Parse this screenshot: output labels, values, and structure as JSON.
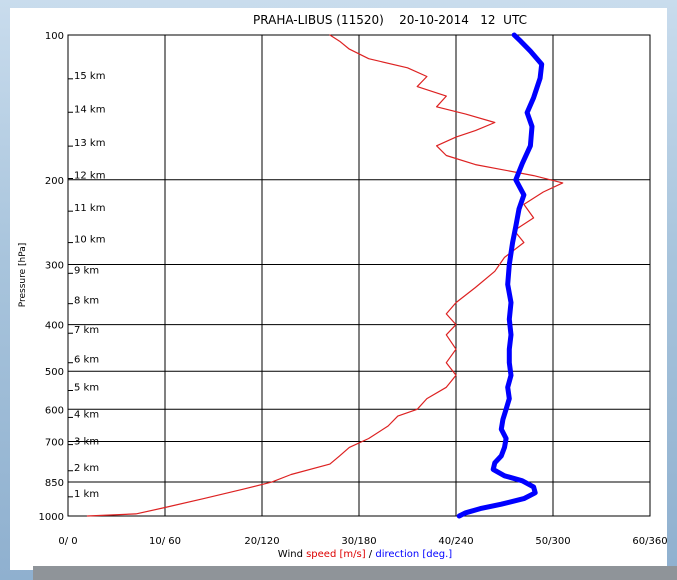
{
  "chart_data": {
    "type": "line",
    "title": "PRAHA-LIBUS (11520)    20-10-2014   12  UTC",
    "ylabel": "Pressure [hPa]",
    "xlabel_parts": [
      {
        "text": "Wind ",
        "color": "#000000"
      },
      {
        "text": "speed",
        "color": "#dd0000"
      },
      {
        "text": " [m/s] ",
        "color": "#dd0000"
      },
      {
        "text": "/ ",
        "color": "#000000"
      },
      {
        "text": "direction",
        "color": "#0000ff"
      },
      {
        "text": " [deg.]",
        "color": "#0000ff"
      }
    ],
    "xlim_speed": [
      0,
      60
    ],
    "xlim_direction": [
      0,
      360
    ],
    "ylim": [
      1000,
      100
    ],
    "y_scale": "log",
    "x_tick_labels": [
      "0/  0",
      "10/ 60",
      "20/120",
      "30/180",
      "40/240",
      "50/300",
      "60/360"
    ],
    "x_tick_speed": [
      0,
      10,
      20,
      30,
      40,
      50,
      60
    ],
    "y_ticks": [
      1000,
      850,
      700,
      600,
      500,
      400,
      300,
      200,
      100
    ],
    "altitude_labels": [
      {
        "text": "1 km",
        "p": 895
      },
      {
        "text": "2 km",
        "p": 790
      },
      {
        "text": "3 km",
        "p": 697
      },
      {
        "text": "4 km",
        "p": 612
      },
      {
        "text": "5 km",
        "p": 538
      },
      {
        "text": "6 km",
        "p": 471
      },
      {
        "text": "7 km",
        "p": 409
      },
      {
        "text": "8 km",
        "p": 355
      },
      {
        "text": "9 km",
        "p": 307
      },
      {
        "text": "10 km",
        "p": 265
      },
      {
        "text": "11 km",
        "p": 228
      },
      {
        "text": "12 km",
        "p": 195
      },
      {
        "text": "13 km",
        "p": 167
      },
      {
        "text": "14 km",
        "p": 142
      },
      {
        "text": "15 km",
        "p": 121
      }
    ],
    "grid": true,
    "series": [
      {
        "name": "speed",
        "units": "m/s",
        "color": "#dd2222",
        "points": [
          [
            2,
            1000
          ],
          [
            7,
            990
          ],
          [
            10,
            960
          ],
          [
            14,
            920
          ],
          [
            18,
            880
          ],
          [
            21,
            850
          ],
          [
            23,
            820
          ],
          [
            27,
            780
          ],
          [
            28,
            750
          ],
          [
            29,
            720
          ],
          [
            31,
            690
          ],
          [
            33,
            650
          ],
          [
            34,
            620
          ],
          [
            36,
            600
          ],
          [
            37,
            570
          ],
          [
            39,
            540
          ],
          [
            40,
            510
          ],
          [
            39,
            480
          ],
          [
            40,
            450
          ],
          [
            39,
            420
          ],
          [
            40,
            400
          ],
          [
            39,
            380
          ],
          [
            40,
            360
          ],
          [
            42,
            335
          ],
          [
            44,
            310
          ],
          [
            45,
            290
          ],
          [
            47,
            270
          ],
          [
            46,
            255
          ],
          [
            48,
            240
          ],
          [
            47,
            225
          ],
          [
            49,
            212
          ],
          [
            51,
            203
          ],
          [
            48,
            196
          ],
          [
            42,
            186
          ],
          [
            39,
            178
          ],
          [
            38,
            170
          ],
          [
            40,
            163
          ],
          [
            42,
            158
          ],
          [
            44,
            152
          ],
          [
            41,
            146
          ],
          [
            38,
            141
          ],
          [
            39,
            134
          ],
          [
            36,
            128
          ],
          [
            37,
            122
          ],
          [
            35,
            117
          ],
          [
            31,
            112
          ],
          [
            29,
            107
          ],
          [
            28,
            103
          ],
          [
            27,
            100
          ]
        ]
      },
      {
        "name": "direction",
        "units": "deg.",
        "color": "#0000ff",
        "points": [
          [
            242,
            1000
          ],
          [
            246,
            985
          ],
          [
            255,
            965
          ],
          [
            268,
            945
          ],
          [
            282,
            920
          ],
          [
            289,
            895
          ],
          [
            288,
            870
          ],
          [
            281,
            845
          ],
          [
            270,
            825
          ],
          [
            263,
            800
          ],
          [
            264,
            775
          ],
          [
            268,
            750
          ],
          [
            270,
            720
          ],
          [
            271,
            690
          ],
          [
            268,
            660
          ],
          [
            269,
            630
          ],
          [
            271,
            600
          ],
          [
            273,
            570
          ],
          [
            272,
            540
          ],
          [
            274,
            510
          ],
          [
            273,
            480
          ],
          [
            273,
            450
          ],
          [
            274,
            420
          ],
          [
            273,
            390
          ],
          [
            274,
            360
          ],
          [
            272,
            330
          ],
          [
            273,
            300
          ],
          [
            275,
            270
          ],
          [
            277,
            250
          ],
          [
            279,
            230
          ],
          [
            282,
            215
          ],
          [
            277,
            200
          ],
          [
            281,
            185
          ],
          [
            286,
            170
          ],
          [
            287,
            155
          ],
          [
            284,
            145
          ],
          [
            288,
            135
          ],
          [
            292,
            123
          ],
          [
            293,
            115
          ],
          [
            286,
            108
          ],
          [
            280,
            103
          ],
          [
            276,
            100
          ]
        ]
      }
    ]
  }
}
